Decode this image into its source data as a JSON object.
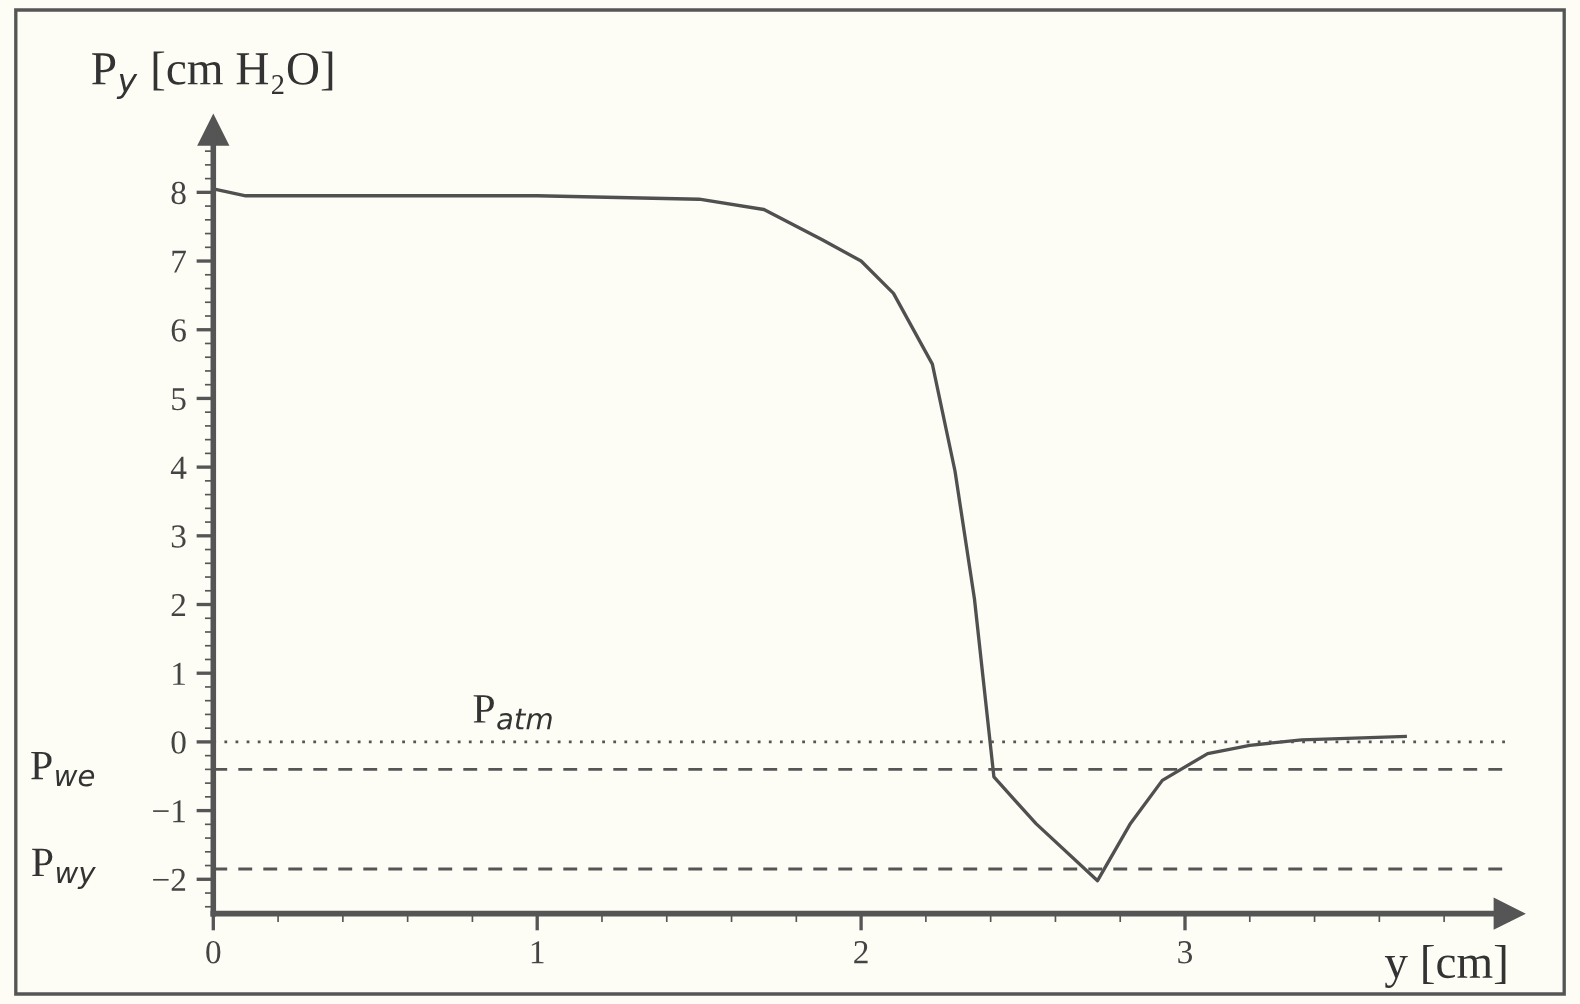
{
  "chart_data": {
    "type": "line",
    "ylabel": "P$_{y}$ [cm H₂O]",
    "xlabel": "y [cm]",
    "x": [
      0,
      0.1,
      1.0,
      1.5,
      1.7,
      1.88,
      2.0,
      2.1,
      2.22,
      2.29,
      2.35,
      2.41,
      2.54,
      2.73,
      2.83,
      2.93,
      3.07,
      3.2,
      3.36,
      3.68
    ],
    "series": [
      {
        "color": "#505050",
        "values": [
          8.05,
          7.95,
          7.95,
          7.9,
          7.75,
          7.31,
          7.0,
          6.53,
          5.5,
          3.94,
          2.08,
          -0.51,
          -1.19,
          -2.02,
          -1.2,
          -0.56,
          -0.17,
          -0.05,
          0.03,
          0.08
        ]
      }
    ],
    "xlim": [
      0,
      4.0
    ],
    "ylim": [
      -2.5,
      8.9
    ],
    "xticks": [
      0,
      1,
      2,
      3
    ],
    "yticks": [
      -2,
      -1,
      0,
      1,
      2,
      3,
      4,
      5,
      6,
      7,
      8
    ],
    "ref_lines": [
      {
        "axis": "y",
        "value": 0,
        "label": "P$_{atm}$",
        "line_style": "dotted"
      },
      {
        "axis": "y",
        "value": -0.4,
        "label": "P$_{we}$",
        "line_style": "dashed"
      },
      {
        "axis": "y",
        "value": -1.85,
        "label": "P$_{wy}$",
        "line_style": "dashed"
      }
    ],
    "grid": false,
    "legend": false,
    "marker": "none",
    "line_style": "solid"
  }
}
